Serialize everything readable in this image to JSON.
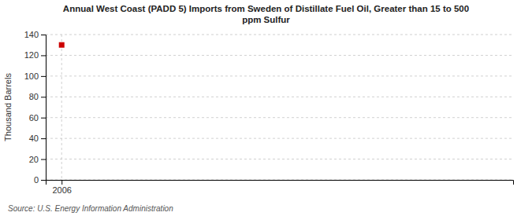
{
  "chart_data": {
    "type": "scatter",
    "title": "Annual West Coast (PADD 5) Imports from Sweden of Distillate Fuel Oil, Greater than 15 to 500\nppm Sulfur",
    "ylabel": "Thousand Barrels",
    "source": "Source: U.S. Energy Information Administration",
    "x": [
      2006
    ],
    "values": [
      130
    ],
    "color": "#cc0000",
    "marker": "square",
    "xlim": [
      2005.4,
      2023
    ],
    "xticks": [
      2006
    ],
    "ylim": [
      0,
      140
    ],
    "yticks": [
      0,
      20,
      40,
      60,
      80,
      100,
      120,
      140
    ],
    "grid": true
  }
}
